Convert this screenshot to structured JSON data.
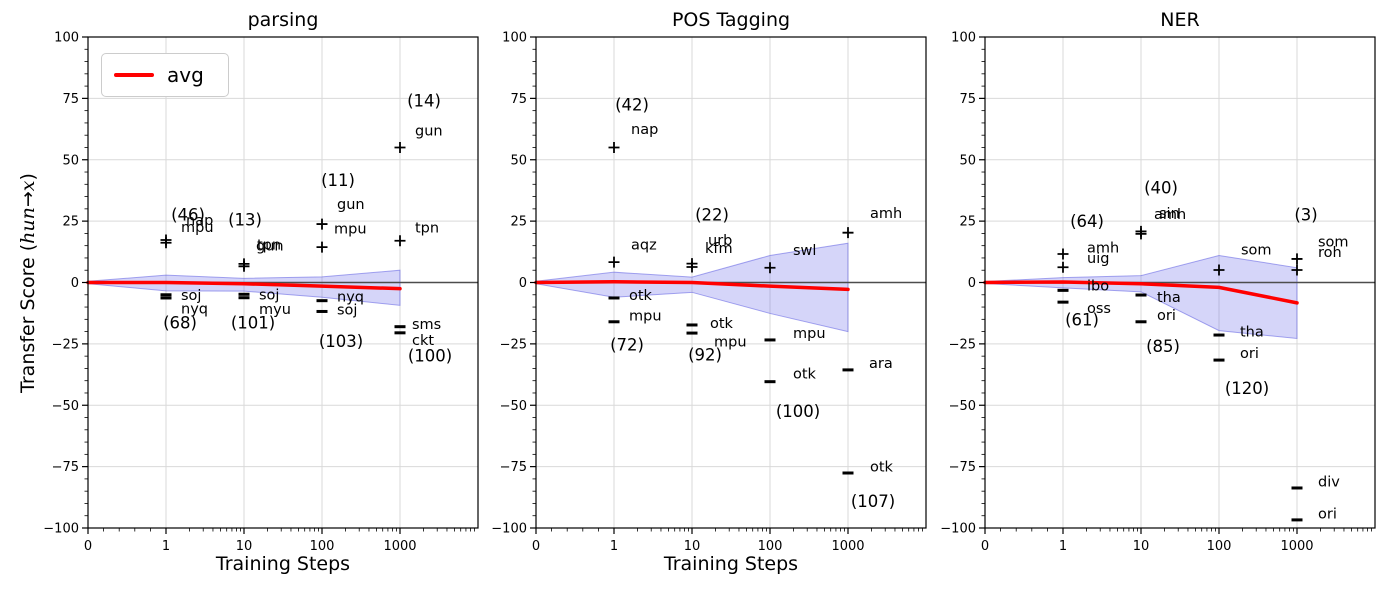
{
  "figure": {
    "ylabel": {
      "prefix": "Transfer Score (",
      "source": "hun",
      "arrow": "→",
      "target": "x",
      "suffix": ")"
    },
    "colors": {
      "avg_line": "#ff0000",
      "band_fill": "rgba(105,105,235,0.28)",
      "band_edge": "rgba(95,95,225,0.55)",
      "grid": "#d9d9d9",
      "zero_line": "#4d4d4d",
      "marker": "#000000",
      "axis": "#000000"
    }
  },
  "chart_data": [
    {
      "type": "line",
      "title": "parsing",
      "xlabel": "Training Steps",
      "legend": {
        "label": "avg"
      },
      "x_tick_labels": [
        "0",
        "1",
        "10",
        "100",
        "1000"
      ],
      "x_tick_values": [
        0,
        1,
        10,
        100,
        1000
      ],
      "y_ticks": [
        100,
        75,
        50,
        25,
        0,
        -25,
        -50,
        -75,
        -100
      ],
      "ylim": [
        -100,
        100
      ],
      "avg": {
        "x": [
          0,
          1,
          10,
          100,
          1000
        ],
        "y": [
          0,
          0,
          -0.5,
          -1.5,
          -2.5
        ]
      },
      "band": {
        "x": [
          0,
          1,
          10,
          100,
          1000
        ],
        "upper": [
          0.5,
          3.0,
          1.7,
          2.3,
          5.0
        ],
        "lower": [
          -0.5,
          -3.4,
          -3.5,
          -6.0,
          -9.3
        ]
      },
      "points": [
        {
          "x": 1,
          "y": 17.3,
          "marker": "plus",
          "label": "nap",
          "label_y": 25.5,
          "dx": 20
        },
        {
          "x": 1,
          "y": 16.2,
          "marker": "plus",
          "label": "mpu",
          "label_y": 22.6,
          "dx": 15
        },
        {
          "x": 1,
          "y": -5.0,
          "marker": "minus",
          "label": "soj",
          "label_y": -5.0
        },
        {
          "x": 1,
          "y": -6.3,
          "marker": "minus",
          "label": "nyq",
          "label_y": -10.5
        },
        {
          "x": 10,
          "y": 7.6,
          "marker": "plus",
          "label": "tpn",
          "label_y": 15.5,
          "dx": 13
        },
        {
          "x": 10,
          "y": 6.6,
          "marker": "plus",
          "label": "gun",
          "label_y": 15.0,
          "dx": 12
        },
        {
          "x": 10,
          "y": -4.8,
          "marker": "minus",
          "label": "soj",
          "label_y": -4.8
        },
        {
          "x": 10,
          "y": -6.2,
          "marker": "minus",
          "label": "myu",
          "label_y": -10.8
        },
        {
          "x": 100,
          "y": 23.8,
          "marker": "plus",
          "label": "gun",
          "label_y": 32.0
        },
        {
          "x": 100,
          "y": 14.4,
          "marker": "plus",
          "label": "mpu",
          "label_y": 22.0,
          "dx": 12
        },
        {
          "x": 100,
          "y": -7.4,
          "marker": "minus",
          "label": "nyq",
          "label_y": -5.8
        },
        {
          "x": 100,
          "y": -11.8,
          "marker": "minus",
          "label": "soj",
          "label_y": -11.0
        },
        {
          "x": 1000,
          "y": 55.0,
          "marker": "plus",
          "label": "gun",
          "label_y": 62.0
        },
        {
          "x": 1000,
          "y": 17.0,
          "marker": "plus",
          "label": "tpn",
          "label_y": 22.5
        },
        {
          "x": 1000,
          "y": -18.0,
          "marker": "minus",
          "label": "sms",
          "label_y": -17.0,
          "dx": 12
        },
        {
          "x": 1000,
          "y": -20.5,
          "marker": "minus",
          "label": "ckt",
          "label_y": -23.5,
          "dx": 12
        }
      ],
      "counts": [
        {
          "x": 1,
          "y": 27.5,
          "text": "(46)",
          "dx": 22
        },
        {
          "x": 1,
          "y": -16.5,
          "text": "(68)",
          "dx": 14
        },
        {
          "x": 10,
          "y": 25.4,
          "text": "(13)",
          "dx": 1
        },
        {
          "x": 10,
          "y": -16.5,
          "text": "(101)",
          "dx": 9
        },
        {
          "x": 100,
          "y": 41.5,
          "text": "(11)",
          "dx": 16
        },
        {
          "x": 100,
          "y": -24.0,
          "text": "(103)",
          "dx": 19
        },
        {
          "x": 1000,
          "y": 74.0,
          "text": "(14)",
          "dx": 24
        },
        {
          "x": 1000,
          "y": -30.0,
          "text": "(100)",
          "dx": 30
        }
      ]
    },
    {
      "type": "line",
      "title": "POS Tagging",
      "xlabel": "Training Steps",
      "x_tick_labels": [
        "0",
        "1",
        "10",
        "100",
        "1000"
      ],
      "x_tick_values": [
        0,
        1,
        10,
        100,
        1000
      ],
      "y_ticks": [
        100,
        75,
        50,
        25,
        0,
        -25,
        -50,
        -75,
        -100
      ],
      "ylim": [
        -100,
        100
      ],
      "avg": {
        "x": [
          0,
          1,
          10,
          100,
          1000
        ],
        "y": [
          0,
          0.3,
          0,
          -1.5,
          -2.8
        ]
      },
      "band": {
        "x": [
          0,
          1,
          10,
          100,
          1000
        ],
        "upper": [
          0.5,
          4.2,
          2.2,
          11.0,
          16.0
        ],
        "lower": [
          -0.5,
          -6.0,
          -4.0,
          -12.6,
          -20.0
        ]
      },
      "points": [
        {
          "x": 1,
          "y": 55.0,
          "marker": "plus",
          "label": "nap",
          "label_y": 62.5,
          "dx": 17
        },
        {
          "x": 1,
          "y": 8.3,
          "marker": "plus",
          "label": "aqz",
          "label_y": 15.5,
          "dx": 17
        },
        {
          "x": 1,
          "y": -6.3,
          "marker": "minus",
          "label": "otk",
          "label_y": -5.0
        },
        {
          "x": 1,
          "y": -16.0,
          "marker": "minus",
          "label": "mpu",
          "label_y": -13.5
        },
        {
          "x": 10,
          "y": 7.7,
          "marker": "plus",
          "label": "urb",
          "label_y": 17.3,
          "dx": 16
        },
        {
          "x": 10,
          "y": 6.3,
          "marker": "plus",
          "label": "kfm",
          "label_y": 14.0,
          "dx": 13
        },
        {
          "x": 10,
          "y": -17.3,
          "marker": "minus",
          "label": "otk",
          "label_y": -16.5,
          "dx": 18
        },
        {
          "x": 10,
          "y": -20.6,
          "marker": "minus",
          "label": "mpu",
          "label_y": -24.0,
          "dx": 22
        },
        {
          "x": 100,
          "y": 6.0,
          "marker": "plus",
          "label": "swl",
          "label_y": 13.2,
          "dx": 23
        },
        {
          "x": 100,
          "y": -23.4,
          "marker": "minus",
          "label": "mpu",
          "label_y": -20.6,
          "dx": 23
        },
        {
          "x": 100,
          "y": -40.4,
          "marker": "minus",
          "label": "otk",
          "label_y": -37.0,
          "dx": 23
        },
        {
          "x": 1000,
          "y": 20.3,
          "marker": "plus",
          "label": "amh",
          "label_y": 28.3,
          "dx": 22
        },
        {
          "x": 1000,
          "y": -35.6,
          "marker": "minus",
          "label": "ara",
          "label_y": -32.8,
          "dx": 21
        },
        {
          "x": 1000,
          "y": -77.6,
          "marker": "minus",
          "label": "otk",
          "label_y": -75.0,
          "dx": 22
        }
      ],
      "counts": [
        {
          "x": 1,
          "y": 72.3,
          "text": "(42)",
          "dx": 18
        },
        {
          "x": 1,
          "y": -25.5,
          "text": "(72)",
          "dx": 13
        },
        {
          "x": 10,
          "y": 27.5,
          "text": "(22)",
          "dx": 20
        },
        {
          "x": 10,
          "y": -29.5,
          "text": "(92)",
          "dx": 13
        },
        {
          "x": 100,
          "y": -52.6,
          "text": "(100)",
          "dx": 28
        },
        {
          "x": 1000,
          "y": -89.3,
          "text": "(107)",
          "dx": 25
        }
      ]
    },
    {
      "type": "line",
      "title": "NER",
      "x_tick_labels": [
        "0",
        "1",
        "10",
        "100",
        "1000"
      ],
      "x_tick_values": [
        0,
        1,
        10,
        100,
        1000
      ],
      "y_ticks": [
        100,
        75,
        50,
        25,
        0,
        -25,
        -50,
        -75,
        -100
      ],
      "ylim": [
        -100,
        100
      ],
      "avg": {
        "x": [
          0,
          1,
          10,
          100,
          1000
        ],
        "y": [
          0,
          0.2,
          -0.5,
          -2.0,
          -8.3
        ]
      },
      "band": {
        "x": [
          0,
          1,
          10,
          100,
          1000
        ],
        "upper": [
          0.4,
          2.0,
          2.8,
          11.0,
          6.0
        ],
        "lower": [
          -0.4,
          -2.2,
          -3.8,
          -19.6,
          -22.8
        ]
      },
      "points": [
        {
          "x": 1,
          "y": 11.6,
          "marker": "plus",
          "label": "amh",
          "label_y": 14.3,
          "dx": 24
        },
        {
          "x": 1,
          "y": 6.2,
          "marker": "plus",
          "label": "uig",
          "label_y": 9.9,
          "dx": 24
        },
        {
          "x": 1,
          "y": -3.2,
          "marker": "minus",
          "label": "ibo",
          "label_y": -1.2,
          "dx": 24
        },
        {
          "x": 1,
          "y": -8.0,
          "marker": "minus",
          "label": "oss",
          "label_y": -10.4,
          "dx": 24
        },
        {
          "x": 10,
          "y": 20.8,
          "marker": "plus",
          "label": "sin",
          "label_y": 28.4,
          "dx": 18
        },
        {
          "x": 10,
          "y": 19.8,
          "marker": "plus",
          "label": "amh",
          "label_y": 28.0,
          "dx": 13
        },
        {
          "x": 10,
          "y": -5.1,
          "marker": "minus",
          "label": "tha",
          "label_y": -6.0,
          "dx": 16
        },
        {
          "x": 10,
          "y": -16.0,
          "marker": "minus",
          "label": "ori",
          "label_y": -13.2,
          "dx": 16
        },
        {
          "x": 100,
          "y": 5.1,
          "marker": "plus",
          "label": "som",
          "label_y": 13.5,
          "dx": 22
        },
        {
          "x": 100,
          "y": -21.4,
          "marker": "minus",
          "label": "tha",
          "label_y": -20.0,
          "dx": 21
        },
        {
          "x": 100,
          "y": -31.6,
          "marker": "minus",
          "label": "ori",
          "label_y": -28.8,
          "dx": 21
        },
        {
          "x": 1000,
          "y": 9.6,
          "marker": "plus",
          "label": "som",
          "label_y": 16.6,
          "dx": 21
        },
        {
          "x": 1000,
          "y": 5.1,
          "marker": "plus",
          "label": "roh",
          "label_y": 12.5,
          "dx": 21
        },
        {
          "x": 1000,
          "y": -83.7,
          "marker": "minus",
          "label": "div",
          "label_y": -81.0,
          "dx": 21
        },
        {
          "x": 1000,
          "y": -96.7,
          "marker": "minus",
          "label": "ori",
          "label_y": -94.0,
          "dx": 21
        }
      ],
      "counts": [
        {
          "x": 1,
          "y": 24.8,
          "text": "(64)",
          "dx": 24
        },
        {
          "x": 1,
          "y": -15.3,
          "text": "(61)",
          "dx": 19
        },
        {
          "x": 10,
          "y": 38.5,
          "text": "(40)",
          "dx": 20
        },
        {
          "x": 10,
          "y": -26.1,
          "text": "(85)",
          "dx": 22
        },
        {
          "x": 100,
          "y": -43.1,
          "text": "(120)",
          "dx": 28
        },
        {
          "x": 1000,
          "y": 27.5,
          "text": "(3)",
          "dx": 9
        }
      ]
    }
  ]
}
